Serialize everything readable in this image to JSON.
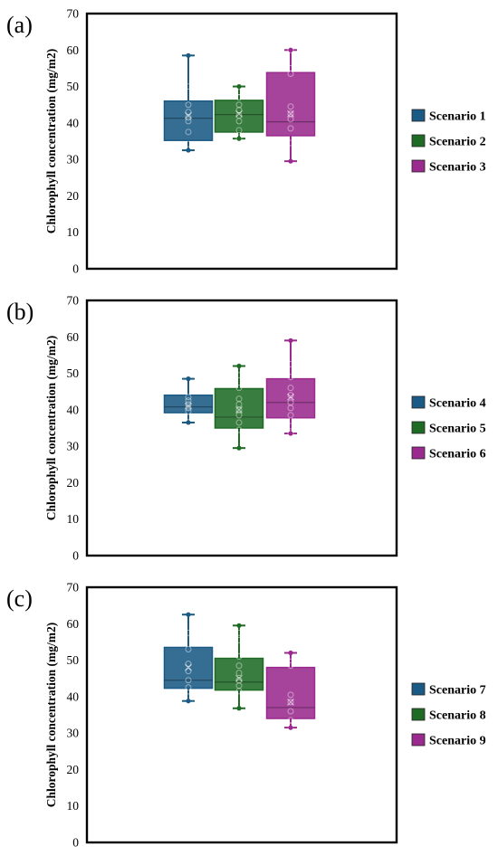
{
  "chart_data": [
    {
      "type": "box",
      "panel_label": "(a)",
      "ylabel": "Chlorophyll concentration (mg/m2)",
      "ylim": [
        0,
        70
      ],
      "yticks": [
        "0",
        "10",
        "20",
        "30",
        "40",
        "50",
        "60",
        "70"
      ],
      "legend_position": "right",
      "series": [
        {
          "name": "Scenario 1",
          "color": "#1a5a84",
          "min": 32.5,
          "q1": 35.2,
          "median": 41.3,
          "mean": 42.0,
          "q3": 46.0,
          "max": 58.5,
          "points": [
            34.2,
            37.5,
            40.5,
            41.5,
            43.0,
            45.0,
            50.0
          ]
        },
        {
          "name": "Scenario 2",
          "color": "#1f6b25",
          "min": 35.7,
          "q1": 37.5,
          "median": 42.3,
          "mean": 42.5,
          "q3": 46.2,
          "max": 50.0,
          "points": [
            36.0,
            38.0,
            40.5,
            42.0,
            43.5,
            45.0,
            47.0,
            48.5
          ]
        },
        {
          "name": "Scenario 3",
          "color": "#9a2a8e",
          "min": 29.5,
          "q1": 36.5,
          "median": 40.3,
          "mean": 42.5,
          "q3": 53.8,
          "max": 60.0,
          "points": [
            34.5,
            38.5,
            41.0,
            42.5,
            44.5,
            53.5,
            55.0,
            60.0
          ]
        }
      ]
    },
    {
      "type": "box",
      "panel_label": "(b)",
      "ylabel": "Chlorophyll concentration (mg/m2)",
      "ylim": [
        0,
        70
      ],
      "yticks": [
        "0",
        "10",
        "20",
        "30",
        "40",
        "50",
        "60",
        "70"
      ],
      "legend_position": "right",
      "series": [
        {
          "name": "Scenario 4",
          "color": "#1a5a84",
          "min": 36.5,
          "q1": 39.2,
          "median": 40.8,
          "mean": 41.0,
          "q3": 44.0,
          "max": 48.5,
          "points": [
            38.0,
            39.5,
            40.5,
            41.5,
            42.5,
            43.5
          ]
        },
        {
          "name": "Scenario 5",
          "color": "#1f6b25",
          "min": 29.5,
          "q1": 35.0,
          "median": 38.0,
          "mean": 40.0,
          "q3": 45.8,
          "max": 52.0,
          "points": [
            34.5,
            36.5,
            38.5,
            40.0,
            41.5,
            43.0,
            46.0,
            49.5
          ]
        },
        {
          "name": "Scenario 6",
          "color": "#9a2a8e",
          "min": 33.5,
          "q1": 37.8,
          "median": 42.0,
          "mean": 43.5,
          "q3": 48.5,
          "max": 59.0,
          "points": [
            33.5,
            35.5,
            38.5,
            40.5,
            42.0,
            44.0,
            46.0,
            49.0,
            52.5
          ]
        }
      ]
    },
    {
      "type": "box",
      "panel_label": "(c)",
      "ylabel": "Chlorophyll concentration (mg/m2)",
      "ylim": [
        0,
        70
      ],
      "yticks": [
        "0",
        "10",
        "20",
        "30",
        "40",
        "50",
        "60",
        "70"
      ],
      "legend_position": "right",
      "series": [
        {
          "name": "Scenario 7",
          "color": "#1a5a84",
          "min": 38.8,
          "q1": 42.3,
          "median": 44.5,
          "mean": 48.0,
          "q3": 53.5,
          "max": 62.5,
          "points": [
            40.0,
            42.5,
            44.5,
            47.0,
            49.0,
            53.0,
            57.5
          ]
        },
        {
          "name": "Scenario 8",
          "color": "#1f6b25",
          "min": 36.8,
          "q1": 41.8,
          "median": 44.0,
          "mean": 45.0,
          "q3": 50.5,
          "max": 59.5,
          "points": [
            41.5,
            43.0,
            44.5,
            46.5,
            48.5,
            51.0,
            55.5,
            57.5
          ]
        },
        {
          "name": "Scenario 9",
          "color": "#9a2a8e",
          "min": 31.5,
          "q1": 34.0,
          "median": 37.0,
          "mean": 38.5,
          "q3": 48.0,
          "max": 52.0,
          "points": [
            32.0,
            33.5,
            36.0,
            38.5,
            40.5,
            48.5,
            51.0
          ]
        }
      ]
    }
  ]
}
